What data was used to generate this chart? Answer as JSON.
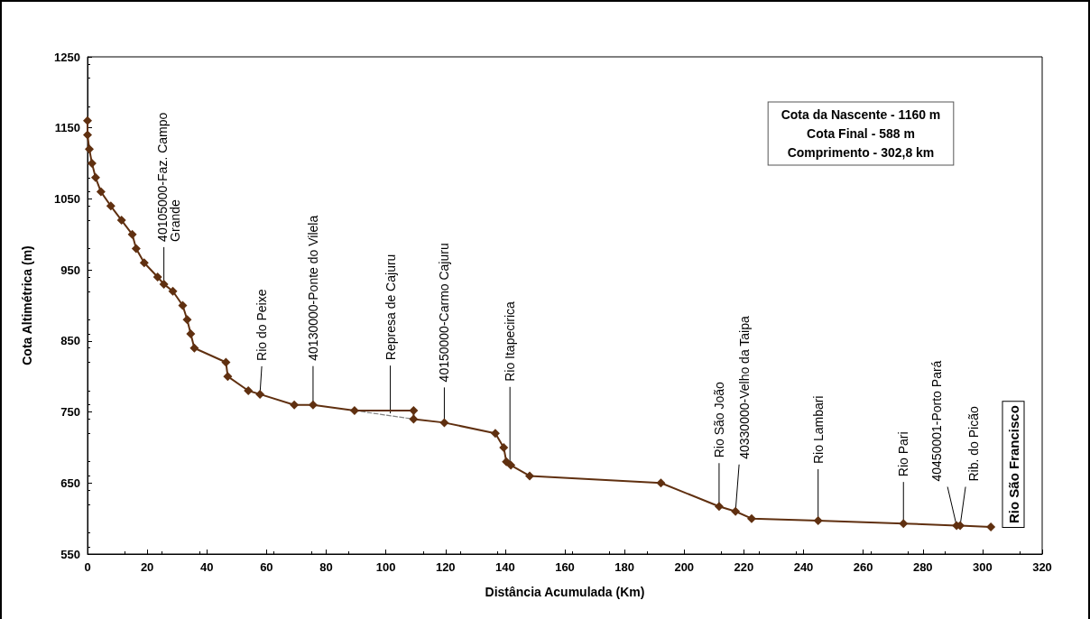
{
  "chart_data": {
    "type": "line",
    "xlabel": "Distância Acumulada (Km)",
    "ylabel": "Cota Altimétrica (m)",
    "xlim": [
      0,
      320
    ],
    "xticks": [
      0,
      20,
      40,
      60,
      80,
      100,
      120,
      140,
      160,
      180,
      200,
      220,
      240,
      260,
      280,
      300,
      320
    ],
    "ylim": [
      550,
      1250
    ],
    "yticks": [
      550,
      650,
      750,
      850,
      950,
      1050,
      1150,
      1250
    ],
    "series": [
      {
        "color": "#603010",
        "marker": "diamond",
        "line_style": "solid",
        "x": [
          0,
          0,
          0.6,
          1.5,
          2.7,
          4.5,
          7.8,
          11.4,
          15,
          16.3,
          19,
          23.5,
          25.6,
          28.6,
          31.9,
          33.4,
          34.6,
          35.8,
          46.4,
          47,
          53.9,
          57.8,
          69.3,
          75.6,
          89.5,
          109.3,
          109.3,
          119.6,
          136.7,
          139.5,
          140.4,
          141.9,
          148.2,
          192.2,
          211.7,
          217.2,
          222.6,
          244.9,
          273.5,
          291.3,
          292.5,
          302.8
        ],
        "values": [
          1160,
          1140,
          1120,
          1100,
          1080,
          1060,
          1040,
          1020,
          1000,
          980,
          960,
          940,
          930,
          920,
          900,
          880,
          860,
          840,
          820,
          800,
          780,
          775,
          760,
          760,
          752,
          752,
          740,
          735,
          720,
          700,
          680,
          675,
          660,
          650,
          617,
          610,
          600,
          597,
          593,
          590,
          590,
          588
        ]
      },
      {
        "color": "#808080",
        "marker": "none",
        "line_style": "dashed",
        "x": [
          89.5,
          109.3
        ],
        "values": [
          752,
          740
        ]
      }
    ],
    "annotations": [
      {
        "text": "40105000-Faz. Campo\nGrande",
        "x": 25.6,
        "y": 930
      },
      {
        "text": "Rio do Peixe",
        "x": 57.8,
        "y": 775
      },
      {
        "text": "40130000-Ponte do Vilela",
        "x": 75.6,
        "y": 760
      },
      {
        "text": "Represa de Cajuru",
        "x": 101.5,
        "y": 748
      },
      {
        "text": "40150000-Carmo Cajuru",
        "x": 119.6,
        "y": 735
      },
      {
        "text": "Rio Itapecirica",
        "x": 141.6,
        "y": 676
      },
      {
        "text": "Rio São João",
        "x": 211.7,
        "y": 617
      },
      {
        "text": "40330000-Velho da Taipa",
        "x": 217.2,
        "y": 610
      },
      {
        "text": "Rio Lambari",
        "x": 244.9,
        "y": 597
      },
      {
        "text": "Rio Pari",
        "x": 273.5,
        "y": 593
      },
      {
        "text": "40450001-Porto Pará",
        "x": 291.3,
        "y": 590
      },
      {
        "text": "Rib. do Picão",
        "x": 292.5,
        "y": 590
      },
      "Rio São Francisco",
      "Cota da Nascente - 1160 m\nCota Final - 588 m\nComprimento - 302,8 km"
    ]
  }
}
